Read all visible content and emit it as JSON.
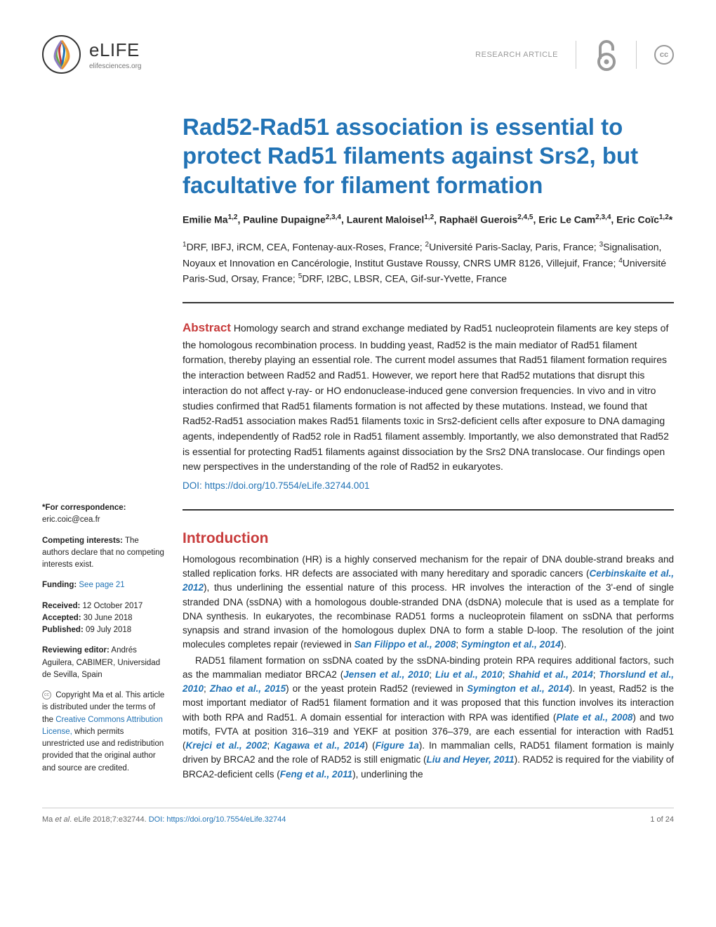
{
  "header": {
    "journal_name": "eLIFE",
    "journal_url": "elifesciences.org",
    "article_type": "RESEARCH ARTICLE",
    "cc_label": "cc"
  },
  "title": "Rad52-Rad51 association is essential to protect Rad51 filaments against Srs2, but facultative for filament formation",
  "authors_html": "Emilie Ma<sup>1,2</sup>, Pauline Dupaigne<sup>2,3,4</sup>, Laurent Maloisel<sup>1,2</sup>, Raphaël Guerois<sup>2,4,5</sup>, Eric Le Cam<sup>2,3,4</sup>, Eric Coïc<sup>1,2</sup>*",
  "affiliations_html": "<sup>1</sup>DRF, IBFJ, iRCM, CEA, Fontenay-aux-Roses, France; <sup>2</sup>Université Paris-Saclay, Paris, France; <sup>3</sup>Signalisation, Noyaux et Innovation en Cancérologie, Institut Gustave Roussy, CNRS UMR 8126, Villejuif, France; <sup>4</sup>Université Paris-Sud, Orsay, France; <sup>5</sup>DRF, I2BC, LBSR, CEA, Gif-sur-Yvette, France",
  "abstract": {
    "label": "Abstract",
    "text": "Homology search and strand exchange mediated by Rad51 nucleoprotein filaments are key steps of the homologous recombination process. In budding yeast, Rad52 is the main mediator of Rad51 filament formation, thereby playing an essential role. The current model assumes that Rad51 filament formation requires the interaction between Rad52 and Rad51. However, we report here that Rad52 mutations that disrupt this interaction do not affect γ-ray- or HO endonuclease-induced gene conversion frequencies. In vivo and in vitro studies confirmed that Rad51 filaments formation is not affected by these mutations. Instead, we found that Rad52-Rad51 association makes Rad51 filaments toxic in Srs2-deficient cells after exposure to DNA damaging agents, independently of Rad52 role in Rad51 filament assembly. Importantly, we also demonstrated that Rad52 is essential for protecting Rad51 filaments against dissociation by the Srs2 DNA translocase. Our findings open new perspectives in the understanding of the role of Rad52 in eukaryotes.",
    "doi_label": "DOI: ",
    "doi": "https://doi.org/10.7554/eLife.32744.001"
  },
  "sidebar": {
    "correspondence_label": "*For correspondence:",
    "correspondence_email": "eric.coic@cea.fr",
    "competing_label": "Competing interests:",
    "competing_text": " The authors declare that no competing interests exist.",
    "funding_label": "Funding:",
    "funding_link": " See page 21",
    "received_label": "Received:",
    "received_date": " 12 October 2017",
    "accepted_label": "Accepted:",
    "accepted_date": " 30 June 2018",
    "published_label": "Published:",
    "published_date": " 09 July 2018",
    "reviewing_label": "Reviewing editor:",
    "reviewing_text": "  Andrés Aguilera, CABIMER, Universidad de Sevilla, Spain",
    "copyright_text1": " Copyright Ma et al. This article is distributed under the terms of the ",
    "copyright_link": "Creative Commons Attribution License,",
    "copyright_text2": " which permits unrestricted use and redistribution provided that the original author and source are credited."
  },
  "intro": {
    "heading": "Introduction"
  },
  "footer": {
    "citation_prefix": "Ma ",
    "citation_italic": "et al",
    "citation_suffix": ". eLife 2018;7:e32744. ",
    "doi_label": "DOI: ",
    "doi": "https://doi.org/10.7554/eLife.32744",
    "page": "1 of 24"
  },
  "colors": {
    "brand_blue": "#2273b5",
    "brand_red": "#c83c3c",
    "text": "#222222",
    "muted": "#999999"
  }
}
